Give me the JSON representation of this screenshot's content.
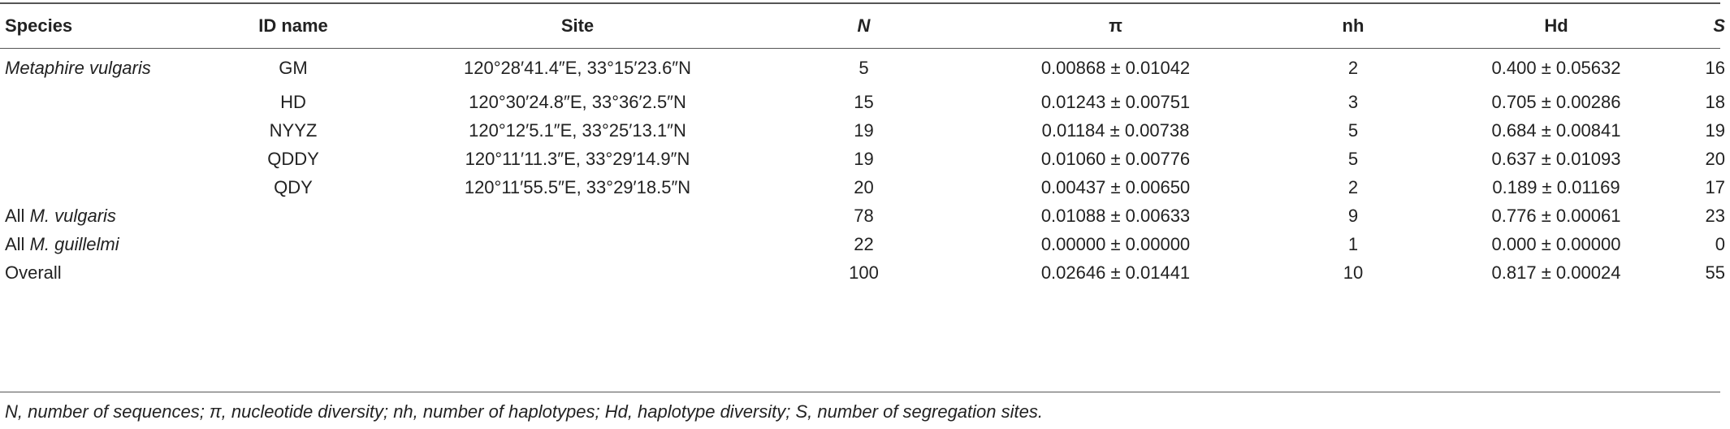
{
  "headers": {
    "species": "Species",
    "id_name": "ID name",
    "site": "Site",
    "n": "N",
    "pi": "π",
    "nh": "nh",
    "hd": "Hd",
    "s": "S"
  },
  "rows": [
    {
      "species_prefix": "",
      "species_italic": "Metaphire vulgaris",
      "id_name": "GM",
      "site": "120°28′41.4″E, 33°15′23.6″N",
      "n": "5",
      "pi": "0.00868 ± 0.01042",
      "nh": "2",
      "hd": "0.400 ± 0.05632",
      "s": "16"
    },
    {
      "species_prefix": "",
      "species_italic": "",
      "id_name": "HD",
      "site": "120°30′24.8″E, 33°36′2.5″N",
      "n": "15",
      "pi": "0.01243 ± 0.00751",
      "nh": "3",
      "hd": "0.705 ± 0.00286",
      "s": "18"
    },
    {
      "species_prefix": "",
      "species_italic": "",
      "id_name": "NYYZ",
      "site": "120°12′5.1″E, 33°25′13.1″N",
      "n": "19",
      "pi": "0.01184 ± 0.00738",
      "nh": "5",
      "hd": "0.684 ± 0.00841",
      "s": "19"
    },
    {
      "species_prefix": "",
      "species_italic": "",
      "id_name": "QDDY",
      "site": "120°11′11.3″E, 33°29′14.9″N",
      "n": "19",
      "pi": "0.01060 ± 0.00776",
      "nh": "5",
      "hd": "0.637 ± 0.01093",
      "s": "20"
    },
    {
      "species_prefix": "",
      "species_italic": "",
      "id_name": "QDY",
      "site": "120°11′55.5″E, 33°29′18.5″N",
      "n": "20",
      "pi": "0.00437 ± 0.00650",
      "nh": "2",
      "hd": "0.189 ± 0.01169",
      "s": "17"
    },
    {
      "species_prefix": "All ",
      "species_italic": "M. vulgaris",
      "id_name": "",
      "site": "",
      "n": "78",
      "pi": "0.01088 ± 0.00633",
      "nh": "9",
      "hd": "0.776 ± 0.00061",
      "s": "23"
    },
    {
      "species_prefix": "All ",
      "species_italic": "M. guillelmi",
      "id_name": "",
      "site": "",
      "n": "22",
      "pi": "0.00000 ± 0.00000",
      "nh": "1",
      "hd": "0.000 ± 0.00000",
      "s": "0"
    },
    {
      "species_prefix": "Overall",
      "species_italic": "",
      "id_name": "",
      "site": "",
      "n": "100",
      "pi": "0.02646 ± 0.01441",
      "nh": "10",
      "hd": "0.817 ± 0.00024",
      "s": "55"
    }
  ],
  "footnote": "N, number of sequences; π, nucleotide diversity; nh, number of haplotypes; Hd, haplotype diversity; S, number of segregation sites."
}
